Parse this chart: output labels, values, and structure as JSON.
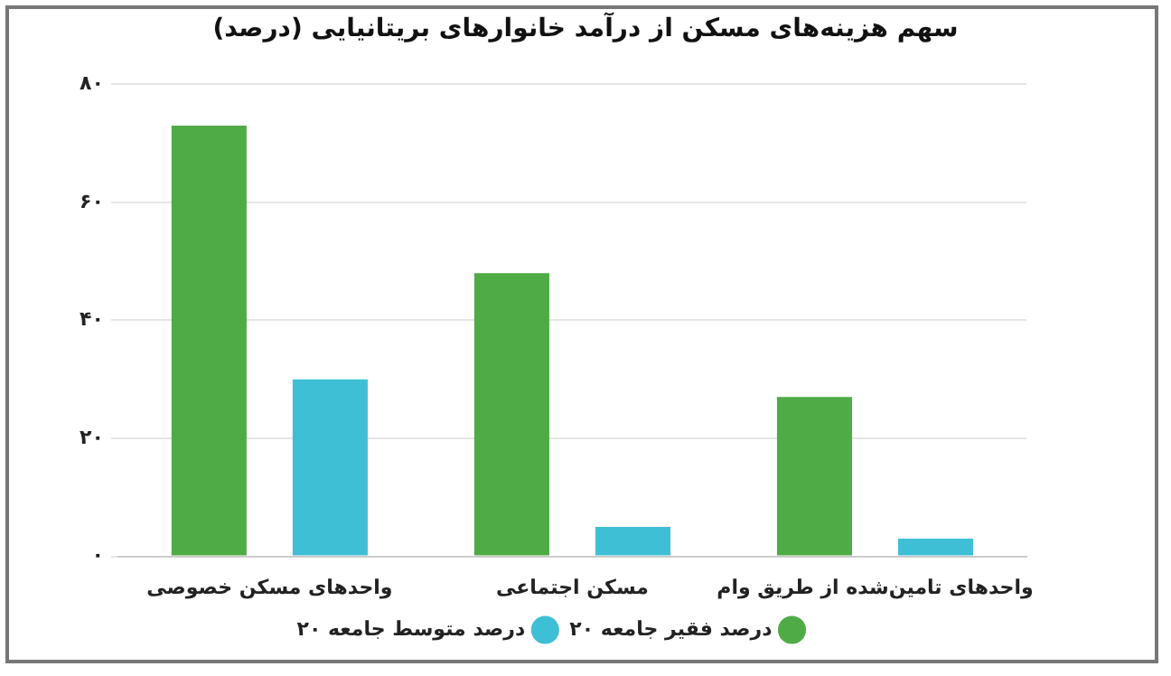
{
  "chart_data": {
    "type": "bar",
    "title": "سهم هزینه‌های مسکن از درآمد خانوارهای بریتانیایی (درصد)",
    "categories": [
      "واحدهای مسکن خصوصی",
      "مسکن اجتماعی",
      "واحدهای تامین‌شده از طریق وام"
    ],
    "series": [
      {
        "name": "۲۰ درصد فقیر جامعه",
        "color": "#4fab45",
        "values": [
          73,
          48,
          27
        ]
      },
      {
        "name": "۲۰ درصد متوسط جامعه",
        "color": "#3fbfd6",
        "values": [
          30,
          5,
          3
        ]
      }
    ],
    "ylim": [
      0,
      80
    ],
    "yticks": [
      {
        "value": 0,
        "label": "۰"
      },
      {
        "value": 20,
        "label": "۲۰"
      },
      {
        "value": 40,
        "label": "۴۰"
      },
      {
        "value": 60,
        "label": "۶۰"
      },
      {
        "value": 80,
        "label": "۸۰"
      }
    ],
    "grid": "y",
    "legend": "bottom"
  }
}
